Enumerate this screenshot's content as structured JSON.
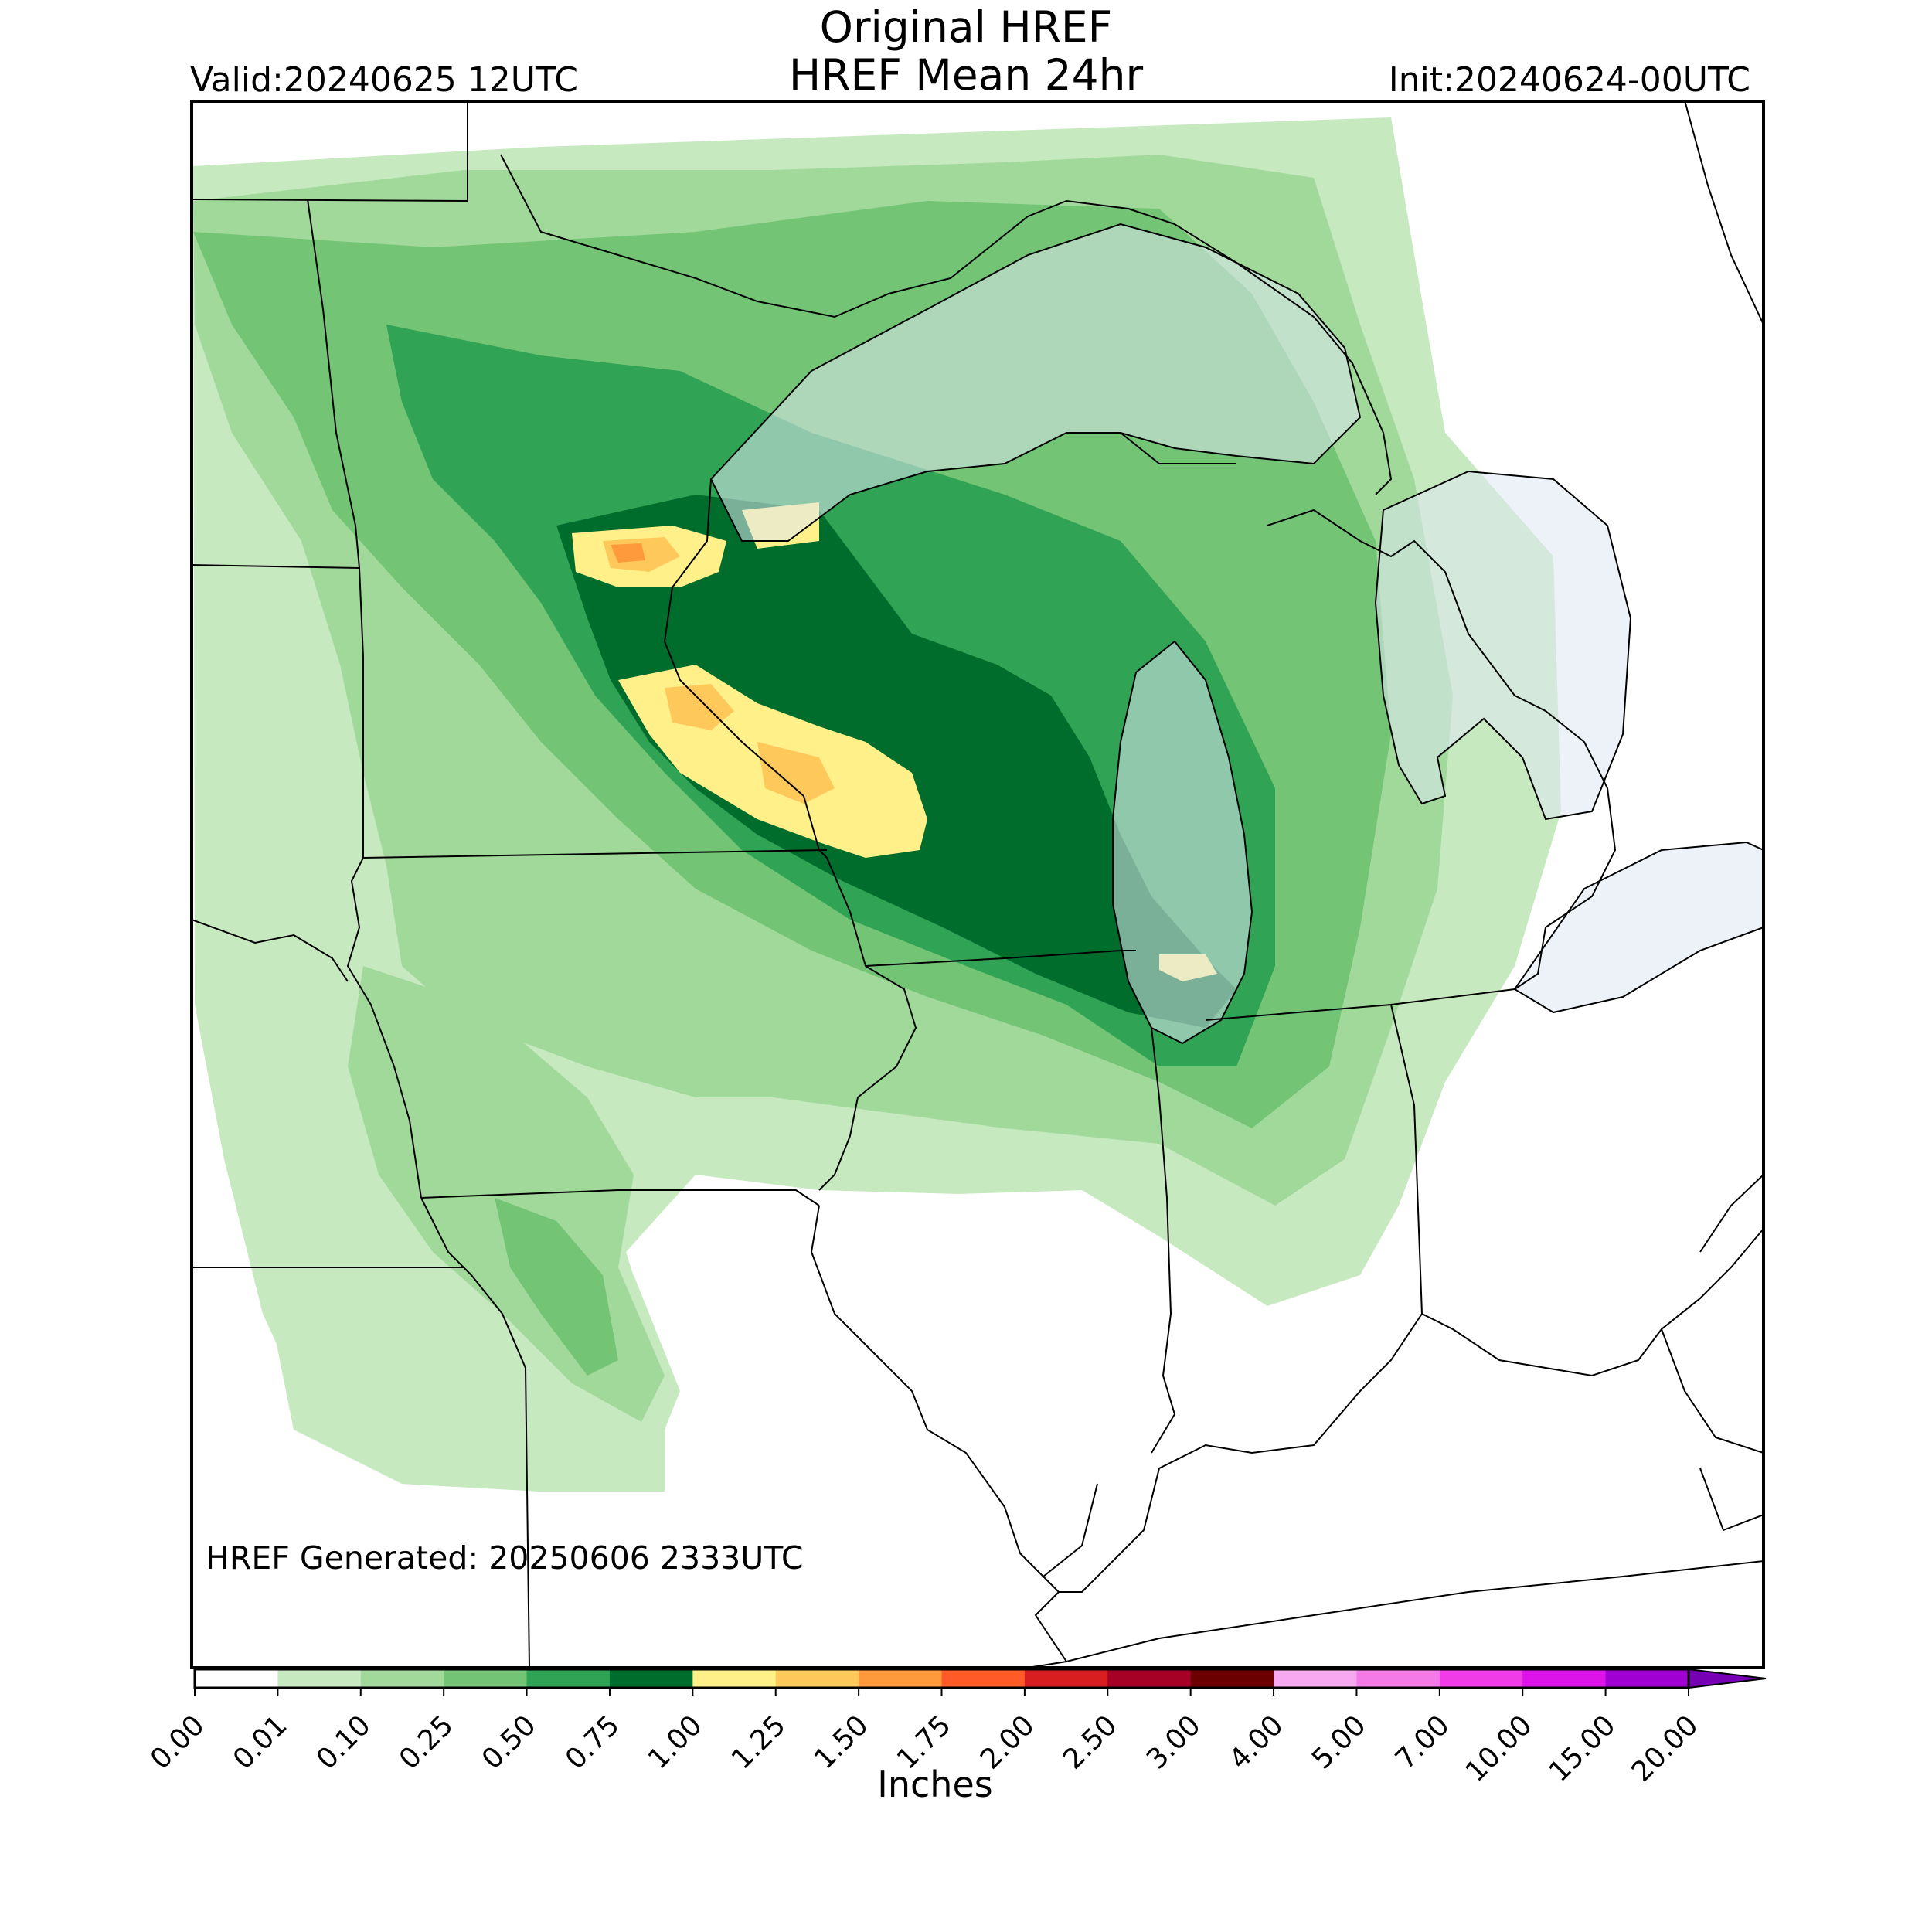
{
  "title_line1": "Original HREF",
  "title_line2": "HREF Mean 24hr",
  "valid": "Valid:20240625 12UTC",
  "init": "Init:20240624-00UTC",
  "generated": "HREF Generated: 20250606 2333UTC",
  "colorbar": {
    "units": "Inches",
    "ticks": [
      "0.00",
      "0.01",
      "0.10",
      "0.25",
      "0.50",
      "0.75",
      "1.00",
      "1.25",
      "1.50",
      "1.75",
      "2.00",
      "2.50",
      "3.00",
      "4.00",
      "5.00",
      "7.00",
      "10.00",
      "15.00",
      "20.00"
    ],
    "colors": [
      "#ffffff",
      "#c7e9c0",
      "#a1d99b",
      "#74c476",
      "#31a354",
      "#006d2c",
      "#fff08a",
      "#ffc85a",
      "#ff9a3c",
      "#ff5a28",
      "#d81e1e",
      "#a50026",
      "#6b0000",
      "#f7a8f0",
      "#f47ae8",
      "#f03ce6",
      "#dc14e8",
      "#a000d2",
      "#7800b4"
    ],
    "extend": "max"
  }
}
